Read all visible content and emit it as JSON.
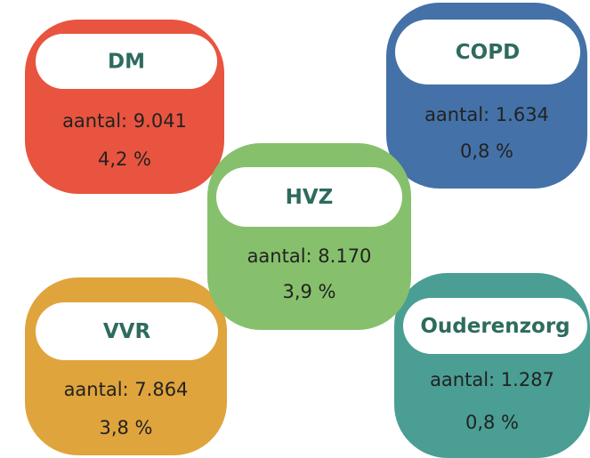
{
  "nodes": [
    {
      "label": "DM",
      "count": "aantal: 9.041",
      "percent": "4,2 %",
      "color": "#e8543f"
    },
    {
      "label": "COPD",
      "count": "aantal: 1.634",
      "percent": "0,8 %",
      "color": "#4472a8"
    },
    {
      "label": "VVR",
      "count": "aantal: 7.864",
      "percent": "3,8 %",
      "color": "#e0a43c"
    },
    {
      "label": "Ouderenzorg",
      "count": "aantal: 1.287",
      "percent": "0,8 %",
      "color": "#4a9e94"
    },
    {
      "label": "HVZ",
      "count": "aantal: 8.170",
      "percent": "3,9 %",
      "color": "#86c06c"
    }
  ]
}
